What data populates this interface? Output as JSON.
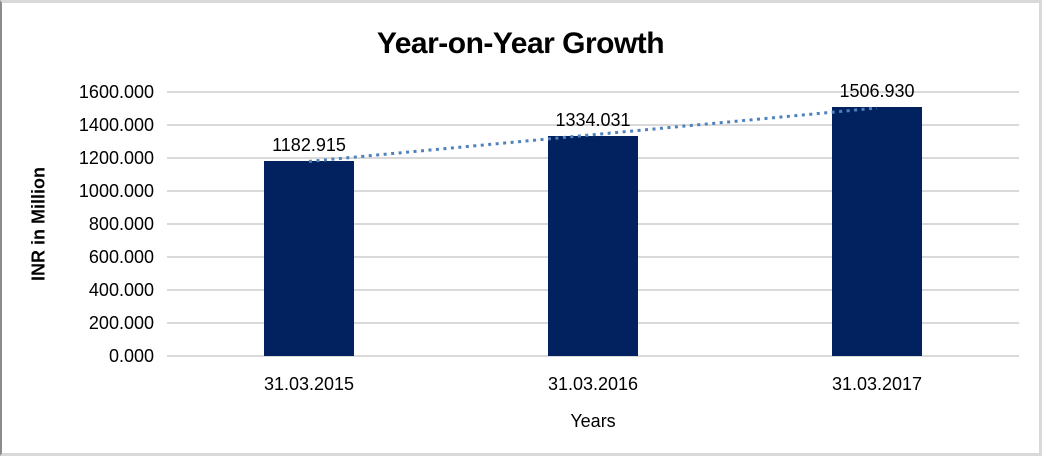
{
  "chart_data": {
    "type": "bar",
    "title": "Year-on-Year Growth",
    "xlabel": "Years",
    "ylabel": "INR in Million",
    "categories": [
      "31.03.2015",
      "31.03.2016",
      "31.03.2017"
    ],
    "series": [
      {
        "name": "INR in Million",
        "values": [
          1182.915,
          1334.031,
          1506.93
        ]
      }
    ],
    "data_labels": [
      "1182.915",
      "1334.031",
      "1506.930"
    ],
    "ylim": [
      0,
      1600
    ],
    "ytick_step": 200,
    "ytick_labels": [
      "0.000",
      "200.000",
      "400.000",
      "600.000",
      "800.000",
      "1000.000",
      "1200.000",
      "1400.000",
      "1600.000"
    ],
    "grid": true,
    "legend": "none",
    "trendline": {
      "type": "linear",
      "style": "dotted",
      "color": "#4f81bd"
    },
    "colors": {
      "bar": "#02215f",
      "gridline": "#d9d9d9",
      "text": "#000000",
      "frame_border": "#d9d9d9",
      "frame_border_left": "#8c8c8c",
      "background": "#ffffff"
    }
  }
}
